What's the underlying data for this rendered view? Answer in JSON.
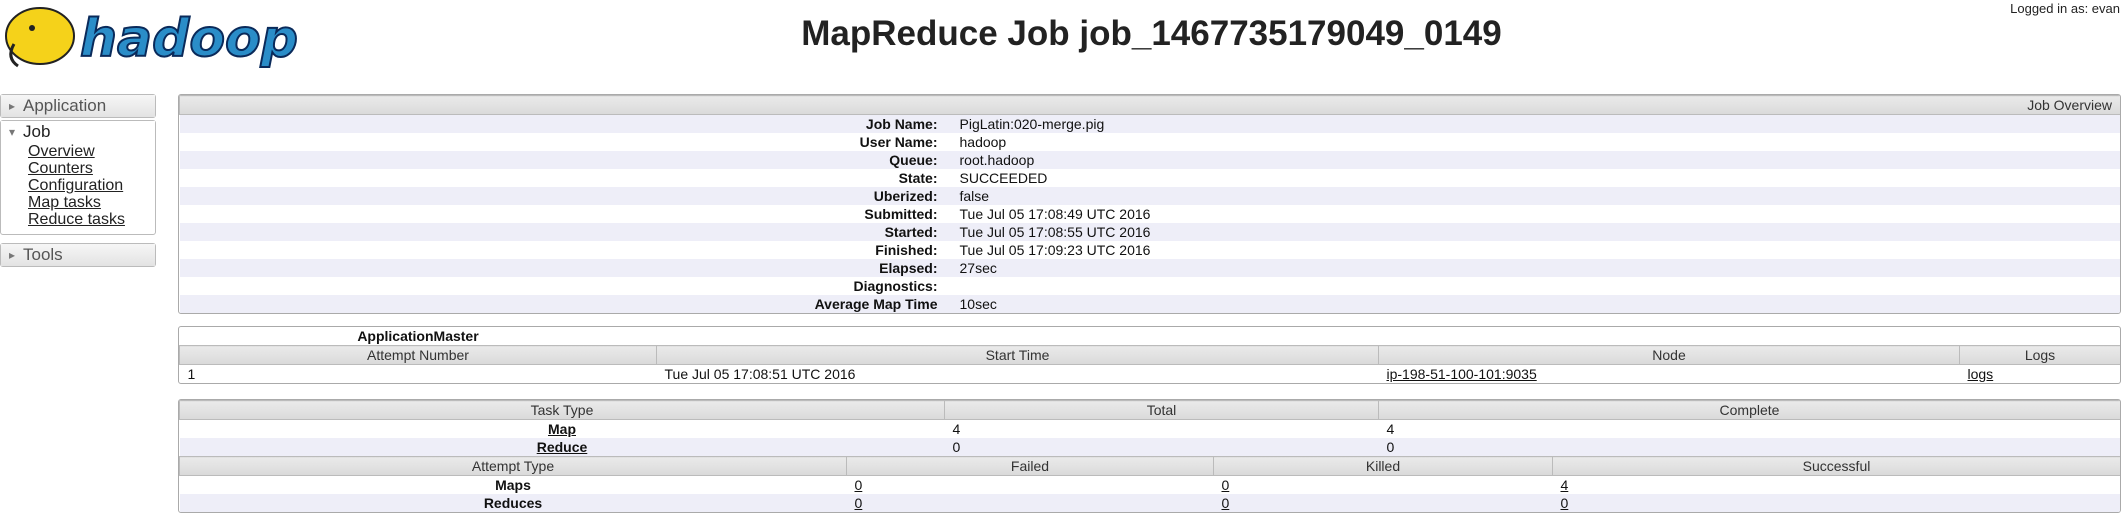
{
  "header": {
    "logo": "hadoop",
    "title": "MapReduce Job job_1467735179049_0149",
    "user": "Logged in as: evan"
  },
  "sidebar": {
    "sections": [
      {
        "label": "Application"
      },
      {
        "label": "Job",
        "links": [
          "Overview",
          "Counters",
          "Configuration",
          "Map tasks",
          "Reduce tasks"
        ]
      },
      {
        "label": "Tools"
      }
    ]
  },
  "overview": {
    "title": "Job Overview",
    "rows": [
      {
        "label": "Job Name:",
        "value": "PigLatin:020-merge.pig"
      },
      {
        "label": "User Name:",
        "value": "hadoop"
      },
      {
        "label": "Queue:",
        "value": "root.hadoop"
      },
      {
        "label": "State:",
        "value": "SUCCEEDED"
      },
      {
        "label": "Uberized:",
        "value": "false"
      },
      {
        "label": "Submitted:",
        "value": "Tue Jul 05 17:08:49 UTC 2016"
      },
      {
        "label": "Started:",
        "value": "Tue Jul 05 17:08:55 UTC 2016"
      },
      {
        "label": "Finished:",
        "value": "Tue Jul 05 17:09:23 UTC 2016"
      },
      {
        "label": "Elapsed:",
        "value": "27sec"
      },
      {
        "label": "Diagnostics:"
      },
      {
        "label": "Average Map Time",
        "value": "10sec"
      }
    ]
  },
  "am": {
    "title": "ApplicationMaster",
    "columns": [
      "Attempt Number",
      "Start Time",
      "Node",
      "Logs"
    ],
    "rows": [
      [
        "1",
        "Tue Jul 05 17:08:51 UTC 2016",
        "ip-198-51-100-101:9035",
        "logs"
      ]
    ]
  },
  "tasks": {
    "columns": [
      "Task Type",
      "Total",
      "Complete"
    ],
    "rows": [
      [
        "Map",
        4,
        4
      ],
      [
        "Reduce",
        0,
        0
      ]
    ]
  },
  "attempts": {
    "columns": [
      "Attempt Type",
      "Failed",
      "Killed",
      "Successful"
    ],
    "rows": [
      [
        "Maps",
        0,
        0,
        4
      ],
      [
        "Reduces",
        0,
        0,
        0
      ]
    ]
  }
}
